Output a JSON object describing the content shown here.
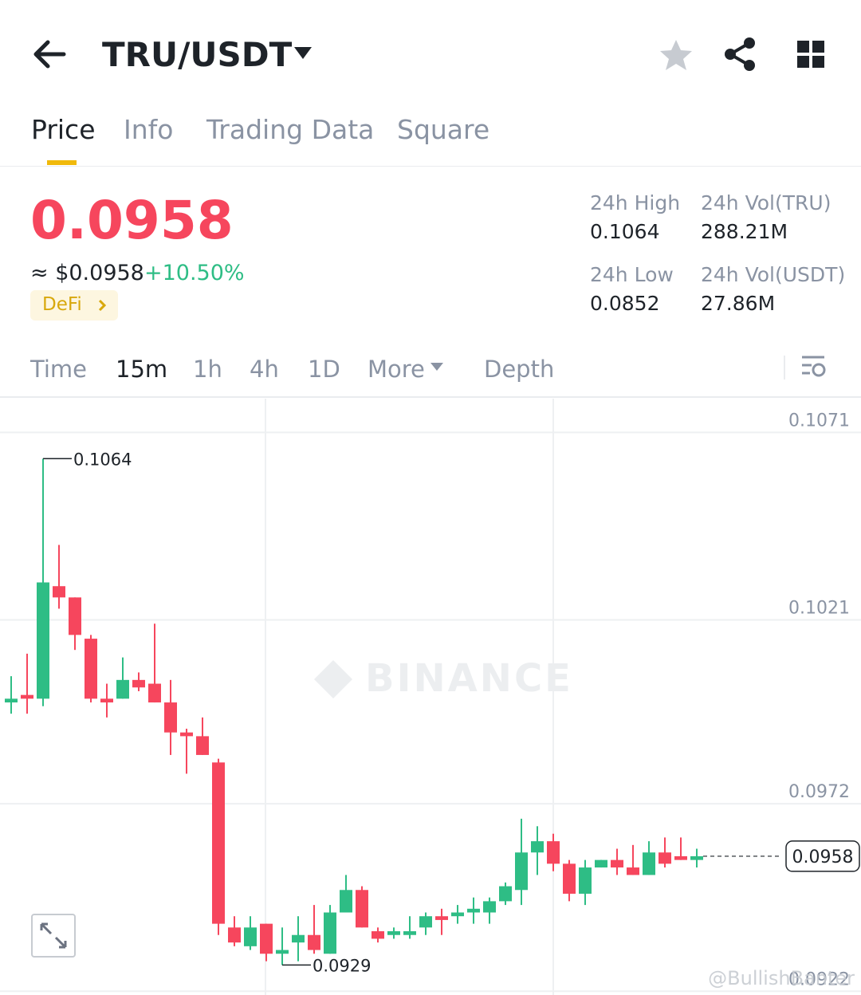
{
  "header": {
    "pair": "TRU/USDT"
  },
  "tabs": [
    "Price",
    "Info",
    "Trading Data",
    "Square"
  ],
  "price": {
    "last": "0.0958",
    "fiat": "≈ $0.0958",
    "change": "+10.50%",
    "tag": "DeFi"
  },
  "stats": [
    {
      "label": "24h High",
      "value": "0.1064"
    },
    {
      "label": "24h Vol(TRU)",
      "value": "288.21M"
    },
    {
      "label": "24h Low",
      "value": "0.0852"
    },
    {
      "label": "24h Vol(USDT)",
      "value": "27.86M"
    }
  ],
  "intervals": [
    "Time",
    "15m",
    "1h",
    "4h",
    "1D",
    "More",
    "Depth"
  ],
  "chart_data": {
    "type": "candlestick",
    "watermark": "BINANCE",
    "credit": "@BullishBanter",
    "colors": {
      "up": "#2ebd85",
      "down": "#f6465d"
    },
    "open": [
      0.0999,
      0.1001,
      0.1,
      0.103,
      0.1027,
      0.1016,
      0.1,
      0.1,
      0.1005,
      0.1004,
      0.0999,
      0.0991,
      0.099,
      0.0983,
      0.0939,
      0.0934,
      0.094,
      0.0932,
      0.0935,
      0.0937,
      0.0932,
      0.0943,
      0.0949,
      0.0938,
      0.0937,
      0.0937,
      0.0939,
      0.0942,
      0.0942,
      0.0943,
      0.0943,
      0.0946,
      0.0949,
      0.0959,
      0.0962,
      0.0956,
      0.0948,
      0.0955,
      0.0957,
      0.0955,
      0.0953,
      0.0959,
      0.0958,
      0.0957
    ],
    "high": [
      0.1006,
      0.1012,
      0.1064,
      0.1041,
      0.1027,
      0.1017,
      0.1004,
      0.1011,
      0.1007,
      0.102,
      0.1005,
      0.0992,
      0.0995,
      0.0984,
      0.0942,
      0.0942,
      0.094,
      0.0939,
      0.0942,
      0.0945,
      0.0945,
      0.0953,
      0.095,
      0.0939,
      0.0939,
      0.0942,
      0.0943,
      0.0944,
      0.0945,
      0.0947,
      0.0947,
      0.0951,
      0.0968,
      0.0966,
      0.0964,
      0.0957,
      0.0957,
      0.0957,
      0.096,
      0.0961,
      0.0962,
      0.0963,
      0.0963,
      0.096
    ],
    "low": [
      0.0996,
      0.0996,
      0.0998,
      0.1024,
      0.1013,
      0.0999,
      0.0995,
      0.1,
      0.1002,
      0.0999,
      0.0985,
      0.098,
      0.0985,
      0.0937,
      0.0934,
      0.0933,
      0.093,
      0.0929,
      0.093,
      0.0932,
      0.0932,
      0.0943,
      0.0939,
      0.0935,
      0.0936,
      0.0936,
      0.0937,
      0.0937,
      0.094,
      0.094,
      0.094,
      0.0945,
      0.0945,
      0.0953,
      0.0954,
      0.0946,
      0.0945,
      0.0955,
      0.0953,
      0.0953,
      0.0953,
      0.0955,
      0.0957,
      0.0955
    ],
    "close": [
      0.1,
      0.1,
      0.1031,
      0.1027,
      0.1017,
      0.1,
      0.0999,
      0.1005,
      0.1003,
      0.0999,
      0.0991,
      0.099,
      0.0985,
      0.094,
      0.0935,
      0.0939,
      0.0932,
      0.0933,
      0.0937,
      0.0933,
      0.0943,
      0.0949,
      0.0939,
      0.0936,
      0.0938,
      0.0938,
      0.0942,
      0.0941,
      0.0943,
      0.0944,
      0.0946,
      0.095,
      0.0959,
      0.0962,
      0.0956,
      0.0948,
      0.0955,
      0.0957,
      0.0955,
      0.0953,
      0.0959,
      0.0956,
      0.0957,
      0.0958
    ],
    "ylim": [
      0.0921,
      0.108
    ],
    "yticks": [
      0.1071,
      0.1021,
      0.0972,
      0.0922
    ],
    "max_annotation": 0.1064,
    "min_annotation": 0.0929,
    "last_price": 0.0958
  }
}
